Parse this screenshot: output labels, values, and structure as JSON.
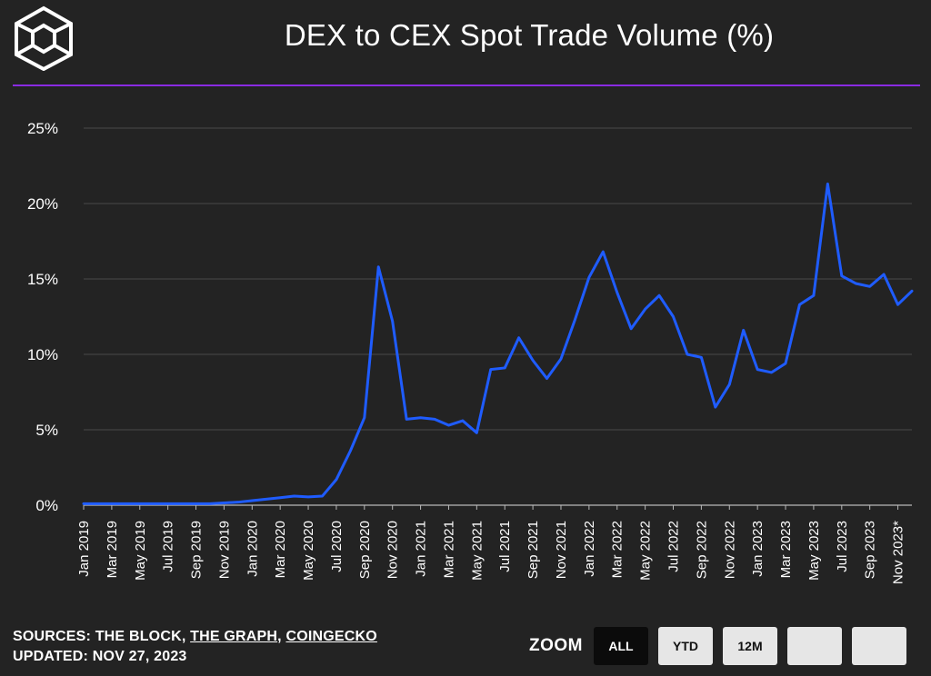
{
  "header": {
    "title": "DEX to CEX Spot Trade Volume (%)"
  },
  "colors": {
    "background": "#232323",
    "accent_rule": "#8a2be2",
    "line": "#1f5cff",
    "grid": "#4a4a4a"
  },
  "footer": {
    "sources_prefix": "SOURCES: THE BLOCK, ",
    "source_link_1": "THE GRAPH",
    "separator": ", ",
    "source_link_2": "COINGECKO",
    "updated": "UPDATED: NOV 27, 2023"
  },
  "zoom": {
    "label": "ZOOM",
    "buttons": [
      "ALL",
      "YTD",
      "12M",
      "",
      ""
    ],
    "active": "ALL"
  },
  "chart_data": {
    "type": "line",
    "title": "DEX to CEX Spot Trade Volume (%)",
    "ylim": [
      0,
      25
    ],
    "y_ticks": [
      "0%",
      "5%",
      "10%",
      "15%",
      "20%",
      "25%"
    ],
    "y_tick_values": [
      0,
      5,
      10,
      15,
      20,
      25
    ],
    "grid": true,
    "x_tick_labels": [
      "Jan 2019",
      "Mar 2019",
      "May 2019",
      "Jul 2019",
      "Sep 2019",
      "Nov 2019",
      "Jan 2020",
      "Mar 2020",
      "May 2020",
      "Jul 2020",
      "Sep 2020",
      "Nov 2020",
      "Jan 2021",
      "Mar 2021",
      "May 2021",
      "Jul 2021",
      "Sep 2021",
      "Nov 2021",
      "Jan 2022",
      "Mar 2022",
      "May 2022",
      "Jul 2022",
      "Sep 2022",
      "Nov 2022",
      "Jan 2023",
      "Mar 2023",
      "May 2023",
      "Jul 2023",
      "Sep 2023",
      "Nov 2023*"
    ],
    "series": [
      {
        "values": [
          0.1,
          0.1,
          0.1,
          0.1,
          0.1,
          0.1,
          0.1,
          0.1,
          0.1,
          0.1,
          0.15,
          0.2,
          0.3,
          0.4,
          0.5,
          0.6,
          0.55,
          0.6,
          1.7,
          3.6,
          5.8,
          15.8,
          12.2,
          5.7,
          5.8,
          5.7,
          5.3,
          5.6,
          4.8,
          9.0,
          9.1,
          11.1,
          9.6,
          8.4,
          9.7,
          12.3,
          15.1,
          16.8,
          14.1,
          11.7,
          13.0,
          13.9,
          12.5,
          10.0,
          9.8,
          6.5,
          8.0,
          11.6,
          9.0,
          8.8,
          9.4,
          13.3,
          13.9,
          21.3,
          15.2,
          14.7,
          14.5,
          15.3,
          13.3,
          14.2
        ]
      }
    ]
  }
}
